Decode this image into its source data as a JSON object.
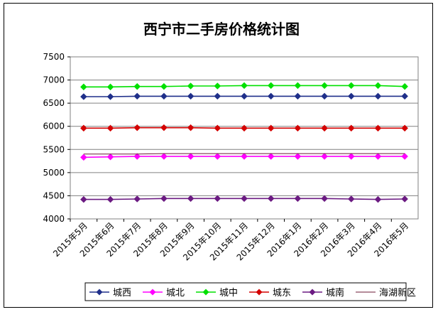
{
  "chart_data": {
    "type": "line",
    "title": "西宁市二手房价格统计图",
    "categories": [
      "2015年5月",
      "2015年6月",
      "2015年7月",
      "2015年8月",
      "2015年9月",
      "2015年10月",
      "2015年11月",
      "2015年12月",
      "2016年1月",
      "2016年2月",
      "2016年3月",
      "2016年4月",
      "2016年5月"
    ],
    "ylim": [
      4000,
      7500
    ],
    "yticks": [
      4000,
      4500,
      5000,
      5500,
      6000,
      6500,
      7000,
      7500
    ],
    "grid": true,
    "legend_position": "bottom",
    "series": [
      {
        "name": "城西",
        "color": "#1f2f8a",
        "marker": "diamond",
        "values": [
          6640,
          6640,
          6650,
          6650,
          6650,
          6650,
          6650,
          6650,
          6650,
          6650,
          6650,
          6650,
          6650
        ]
      },
      {
        "name": "城北",
        "color": "#ff00ff",
        "marker": "diamond",
        "values": [
          5330,
          5340,
          5350,
          5350,
          5350,
          5350,
          5350,
          5350,
          5350,
          5350,
          5350,
          5350,
          5350
        ]
      },
      {
        "name": "城中",
        "color": "#00e000",
        "marker": "diamond",
        "values": [
          6850,
          6850,
          6860,
          6860,
          6870,
          6870,
          6880,
          6880,
          6880,
          6880,
          6880,
          6880,
          6860
        ]
      },
      {
        "name": "城东",
        "color": "#d40000",
        "marker": "diamond",
        "values": [
          5960,
          5960,
          5970,
          5970,
          5970,
          5960,
          5960,
          5960,
          5960,
          5960,
          5960,
          5960,
          5960
        ]
      },
      {
        "name": "城南",
        "color": "#6b1a82",
        "marker": "diamond",
        "values": [
          4420,
          4420,
          4430,
          4440,
          4440,
          4440,
          4440,
          4440,
          4440,
          4440,
          4430,
          4420,
          4430
        ]
      },
      {
        "name": "海湖新区",
        "color": "#6b1a36",
        "marker": "none",
        "values": [
          5400,
          5400,
          5400,
          5410,
          5410,
          5410,
          5410,
          5410,
          5410,
          5410,
          5410,
          5410,
          5410
        ]
      }
    ]
  }
}
